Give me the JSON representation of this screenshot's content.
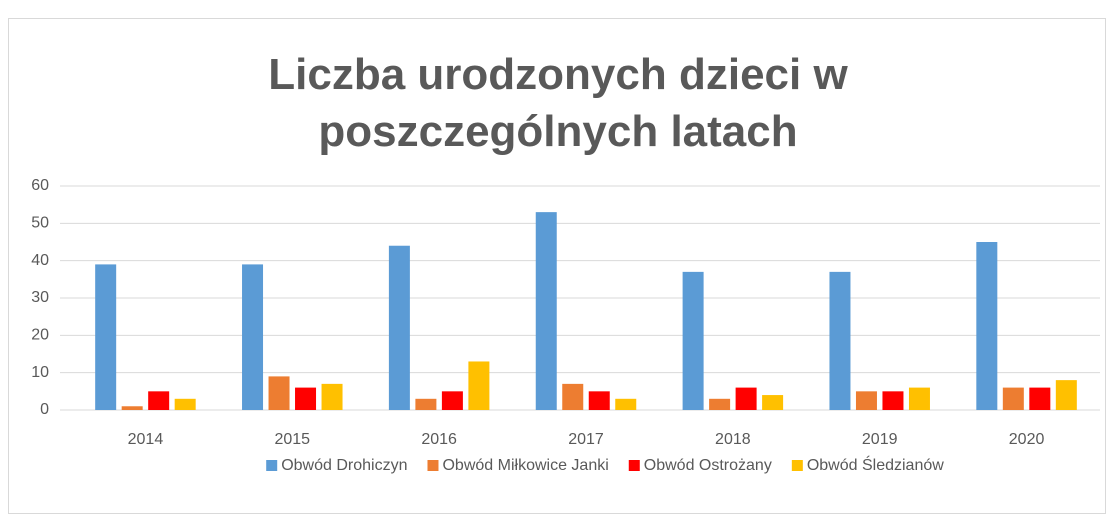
{
  "chart_data": {
    "type": "bar",
    "title": "Liczba urodzonych dzieci w poszczególnych latach",
    "categories": [
      "2014",
      "2015",
      "2016",
      "2017",
      "2018",
      "2019",
      "2020"
    ],
    "series": [
      {
        "name": "Obwód Drohiczyn",
        "color": "#5b9bd5",
        "values": [
          39,
          39,
          44,
          53,
          37,
          37,
          45
        ]
      },
      {
        "name": "Obwód Miłkowice Janki",
        "color": "#ed7d31",
        "values": [
          1,
          9,
          3,
          7,
          3,
          5,
          6
        ]
      },
      {
        "name": "Obwód Ostrożany",
        "color": "#ff0000",
        "values": [
          5,
          6,
          5,
          5,
          6,
          5,
          6
        ]
      },
      {
        "name": "Obwód Śledzianów",
        "color": "#ffc000",
        "values": [
          3,
          7,
          13,
          3,
          4,
          6,
          8
        ]
      }
    ],
    "ylim": [
      0,
      60
    ],
    "yticks": [
      0,
      10,
      20,
      30,
      40,
      50,
      60
    ],
    "grid": true,
    "legend": "bottom"
  }
}
